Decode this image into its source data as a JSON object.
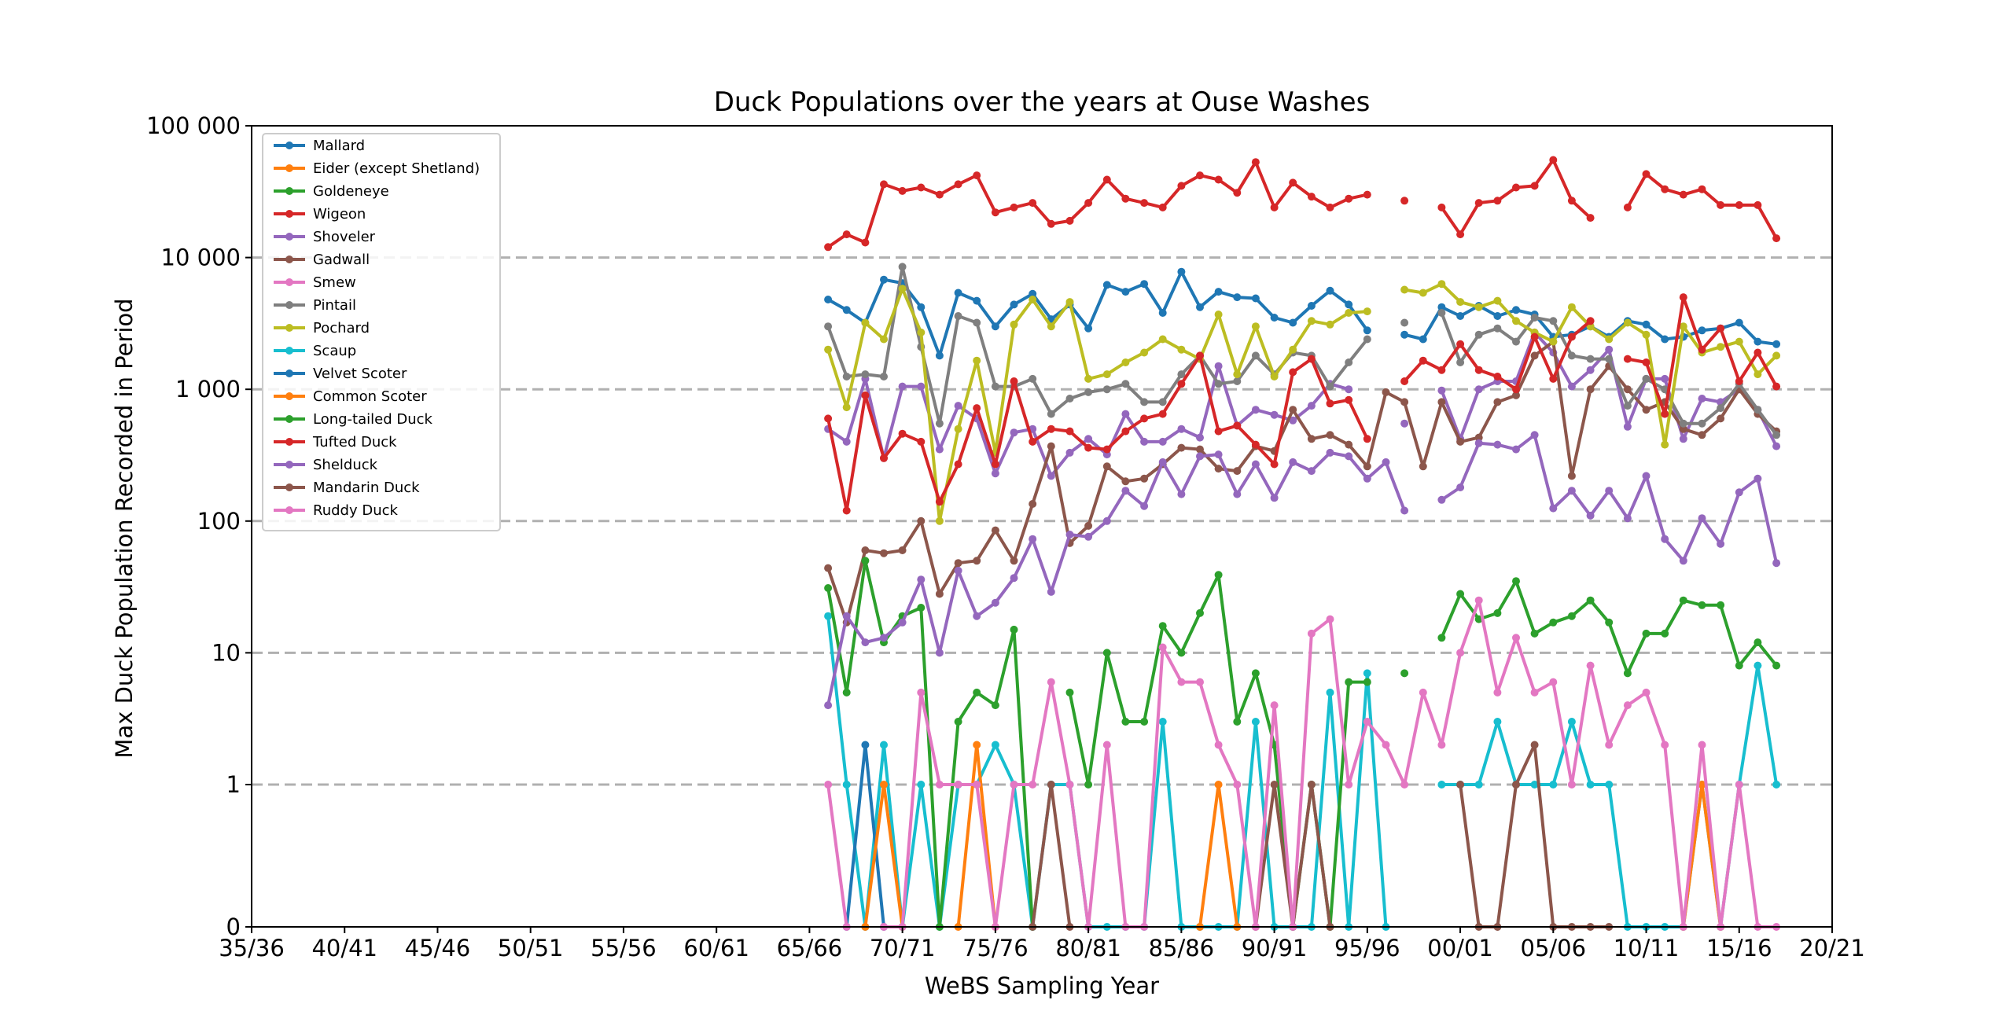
{
  "chart_data": {
    "type": "line",
    "title": "Duck Populations over the years at Ouse Washes",
    "xlabel": "WeBS Sampling Year",
    "ylabel": "Max Duck Population Recorded in Period",
    "x_tick_labels": [
      "35/36",
      "40/41",
      "45/46",
      "50/51",
      "55/56",
      "60/61",
      "65/66",
      "70/71",
      "75/76",
      "80/81",
      "85/86",
      "90/91",
      "95/96",
      "00/01",
      "05/06",
      "10/11",
      "15/16",
      "20/21"
    ],
    "x_tick_values": [
      1935,
      1940,
      1945,
      1950,
      1955,
      1960,
      1965,
      1970,
      1975,
      1980,
      1985,
      1990,
      1995,
      2000,
      2005,
      2010,
      2015,
      2020
    ],
    "xlim": [
      1935,
      2020
    ],
    "yscale": "symlog",
    "ylim": [
      0,
      100000
    ],
    "y_tick_values": [
      0,
      1,
      10,
      100,
      1000,
      10000,
      100000
    ],
    "y_tick_labels": [
      "0",
      "1",
      "10",
      "100",
      "1 000",
      "10 000",
      "100 000"
    ],
    "grid": "horizontal dashed",
    "legend_position": "upper left",
    "x": [
      1966,
      1967,
      1968,
      1969,
      1970,
      1971,
      1972,
      1973,
      1974,
      1975,
      1976,
      1977,
      1978,
      1979,
      1980,
      1981,
      1982,
      1983,
      1984,
      1985,
      1986,
      1987,
      1988,
      1989,
      1990,
      1991,
      1992,
      1993,
      1994,
      1995,
      1996,
      1997,
      1998,
      1999,
      2000,
      2001,
      2002,
      2003,
      2004,
      2005,
      2006,
      2007,
      2008,
      2009,
      2010,
      2011,
      2012,
      2013,
      2014,
      2015,
      2016,
      2017
    ],
    "series": [
      {
        "name": "Mallard",
        "color": "#1f77b4",
        "values": [
          4800,
          4000,
          3200,
          6800,
          6400,
          4200,
          1800,
          5400,
          4700,
          3000,
          4400,
          5300,
          3400,
          4400,
          2900,
          6200,
          5500,
          6300,
          3800,
          7800,
          4200,
          5500,
          5000,
          4900,
          3500,
          3200,
          4300,
          5600,
          4400,
          2800,
          null,
          2600,
          2400,
          4200,
          3600,
          4300,
          3600,
          4000,
          3700,
          2500,
          2600,
          3000,
          2500,
          3300,
          3100,
          2400,
          2500,
          2800,
          2900,
          3200,
          2300,
          2200
        ]
      },
      {
        "name": "Eider (except Shetland)",
        "color": "#ff7f0e",
        "values": [
          null,
          null,
          null,
          null,
          null,
          null,
          null,
          null,
          null,
          null,
          null,
          null,
          null,
          null,
          null,
          null,
          null,
          null,
          null,
          null,
          null,
          null,
          null,
          null,
          null,
          null,
          null,
          null,
          null,
          null,
          null,
          null,
          null,
          null,
          null,
          null,
          null,
          null,
          null,
          null,
          null,
          null,
          null,
          null,
          null,
          null,
          null,
          null,
          null,
          null,
          null,
          null
        ]
      },
      {
        "name": "Goldeneye",
        "color": "#2ca02c",
        "values": [
          null,
          null,
          null,
          null,
          null,
          null,
          null,
          null,
          null,
          null,
          null,
          null,
          null,
          null,
          null,
          null,
          null,
          null,
          null,
          null,
          null,
          null,
          null,
          null,
          null,
          null,
          null,
          null,
          null,
          null,
          null,
          null,
          null,
          null,
          null,
          null,
          null,
          null,
          null,
          null,
          null,
          null,
          null,
          null,
          null,
          null,
          null,
          null,
          null,
          null,
          null,
          null
        ]
      },
      {
        "name": "Wigeon",
        "color": "#d62728",
        "values": [
          12000,
          15000,
          13000,
          36000,
          32000,
          34000,
          30000,
          36000,
          42000,
          22000,
          24000,
          26000,
          18000,
          19000,
          26000,
          39000,
          28000,
          26000,
          24000,
          35000,
          42000,
          39000,
          31000,
          53000,
          24000,
          37000,
          29000,
          24000,
          28000,
          30000,
          null,
          27000,
          null,
          24000,
          15000,
          26000,
          27000,
          34000,
          35000,
          55000,
          27000,
          20000,
          null,
          24000,
          43000,
          33000,
          30000,
          33000,
          25000,
          25000,
          25000,
          14000
        ]
      },
      {
        "name": "Shoveler",
        "color": "#9467bd",
        "values": [
          500,
          400,
          1200,
          300,
          1050,
          1050,
          350,
          750,
          600,
          230,
          470,
          500,
          220,
          330,
          420,
          320,
          650,
          400,
          400,
          500,
          430,
          1500,
          530,
          700,
          640,
          580,
          750,
          1100,
          1000,
          null,
          null,
          550,
          null,
          980,
          420,
          1000,
          1150,
          1150,
          2700,
          1900,
          1050,
          1400,
          2000,
          520,
          1200,
          1200,
          420,
          850,
          800,
          1000,
          700,
          370
        ]
      },
      {
        "name": "Gadwall",
        "color": "#8c564b",
        "values": [
          44,
          17,
          60,
          57,
          60,
          100,
          28,
          48,
          50,
          85,
          50,
          135,
          370,
          68,
          92,
          260,
          200,
          210,
          270,
          360,
          350,
          250,
          240,
          370,
          340,
          700,
          420,
          450,
          380,
          260,
          950,
          800,
          260,
          800,
          400,
          430,
          800,
          900,
          1800,
          2300,
          220,
          1000,
          1500,
          1000,
          700,
          800,
          500,
          450,
          600,
          1000,
          650,
          480
        ]
      },
      {
        "name": "Smew",
        "color": "#e377c2",
        "values": [
          null,
          null,
          null,
          null,
          null,
          null,
          null,
          null,
          null,
          null,
          null,
          null,
          null,
          null,
          null,
          null,
          null,
          null,
          null,
          null,
          null,
          null,
          null,
          null,
          null,
          null,
          null,
          null,
          null,
          null,
          null,
          null,
          null,
          null,
          null,
          null,
          null,
          null,
          null,
          null,
          null,
          null,
          null,
          null,
          null,
          null,
          null,
          null,
          null,
          null,
          null,
          null
        ]
      },
      {
        "name": "Pintail",
        "color": "#7f7f7f",
        "values": [
          3000,
          1250,
          1300,
          1250,
          8500,
          2100,
          550,
          3600,
          3200,
          1050,
          1050,
          1200,
          650,
          850,
          950,
          1000,
          1100,
          800,
          800,
          1300,
          1800,
          1100,
          1150,
          1800,
          1300,
          1900,
          1800,
          1050,
          1600,
          2400,
          null,
          3200,
          null,
          3800,
          1600,
          2600,
          2900,
          2300,
          3500,
          3300,
          1800,
          1700,
          1700,
          750,
          1200,
          1000,
          550,
          550,
          720,
          1100,
          700,
          450
        ]
      },
      {
        "name": "Pochard",
        "color": "#bcbd22",
        "values": [
          2000,
          730,
          3200,
          2400,
          5800,
          2700,
          100,
          500,
          1650,
          330,
          3100,
          4800,
          3000,
          4600,
          1200,
          1300,
          1600,
          1900,
          2400,
          2000,
          1700,
          3700,
          1300,
          3000,
          1250,
          2000,
          3300,
          3100,
          3800,
          3900,
          null,
          5700,
          5400,
          6300,
          4600,
          4200,
          4700,
          3300,
          2700,
          2300,
          4200,
          3000,
          2400,
          3200,
          2600,
          380,
          3000,
          1900,
          2100,
          2300,
          1300,
          1800
        ]
      },
      {
        "name": "Scaup",
        "color": "#17becf",
        "values": [
          19,
          1,
          0,
          2,
          0,
          1,
          0,
          1,
          1,
          2,
          1,
          0,
          1,
          1,
          0,
          0,
          0,
          0,
          3,
          0,
          0,
          0,
          0,
          3,
          0,
          0,
          0,
          5,
          0,
          7,
          0,
          null,
          null,
          1,
          1,
          1,
          3,
          1,
          1,
          1,
          3,
          1,
          1,
          0,
          0,
          0,
          0,
          1,
          0,
          1,
          8,
          1
        ]
      },
      {
        "name": "Velvet Scoter",
        "color": "#1f77b4",
        "values": [
          null,
          0,
          2,
          0,
          null,
          null,
          null,
          null,
          null,
          null,
          null,
          null,
          null,
          null,
          null,
          null,
          null,
          null,
          null,
          null,
          null,
          null,
          null,
          null,
          null,
          null,
          null,
          null,
          null,
          null,
          null,
          null,
          null,
          null,
          null,
          null,
          null,
          null,
          null,
          null,
          null,
          null,
          null,
          null,
          null,
          null,
          null,
          null,
          null,
          null,
          null,
          null
        ]
      },
      {
        "name": "Common Scoter",
        "color": "#ff7f0e",
        "values": [
          null,
          null,
          0,
          1,
          0,
          null,
          null,
          0,
          2,
          0,
          null,
          null,
          null,
          null,
          null,
          null,
          null,
          null,
          null,
          null,
          0,
          1,
          0,
          null,
          null,
          null,
          null,
          null,
          null,
          null,
          null,
          null,
          null,
          null,
          null,
          null,
          null,
          null,
          null,
          null,
          null,
          null,
          null,
          null,
          null,
          null,
          0,
          1,
          0,
          null,
          null,
          null
        ]
      },
      {
        "name": "Long-tailed Duck",
        "color": "#2ca02c",
        "values": [
          31,
          5,
          50,
          12,
          19,
          22,
          0,
          3,
          5,
          4,
          15,
          0,
          null,
          5,
          1,
          10,
          3,
          3,
          16,
          10,
          20,
          39,
          3,
          7,
          2,
          0,
          1,
          0,
          6,
          6,
          null,
          7,
          null,
          13,
          28,
          18,
          20,
          35,
          14,
          17,
          19,
          25,
          17,
          7,
          14,
          14,
          25,
          23,
          23,
          8,
          12,
          8
        ]
      },
      {
        "name": "Tufted Duck",
        "color": "#d62728",
        "values": [
          600,
          120,
          900,
          300,
          460,
          400,
          140,
          270,
          720,
          270,
          1150,
          400,
          500,
          480,
          360,
          350,
          480,
          600,
          650,
          1100,
          1800,
          480,
          530,
          380,
          270,
          1350,
          1700,
          780,
          830,
          420,
          null,
          1150,
          1650,
          1400,
          2200,
          1400,
          1250,
          1000,
          2500,
          1200,
          2500,
          3300,
          null,
          1700,
          1600,
          650,
          5000,
          2000,
          2900,
          1150,
          1900,
          1050
        ]
      },
      {
        "name": "Shelduck",
        "color": "#9467bd",
        "values": [
          4,
          19,
          12,
          13,
          17,
          36,
          10,
          42,
          19,
          24,
          37,
          73,
          29,
          79,
          76,
          100,
          170,
          130,
          280,
          160,
          310,
          320,
          160,
          270,
          150,
          280,
          240,
          330,
          310,
          210,
          280,
          120,
          null,
          145,
          180,
          390,
          380,
          350,
          450,
          125,
          170,
          110,
          170,
          105,
          220,
          73,
          50,
          105,
          67,
          165,
          210,
          48
        ]
      },
      {
        "name": "Mandarin Duck",
        "color": "#8c564b",
        "values": [
          null,
          null,
          null,
          null,
          null,
          null,
          null,
          null,
          null,
          null,
          null,
          0,
          1,
          0,
          null,
          null,
          null,
          null,
          null,
          null,
          null,
          null,
          null,
          0,
          1,
          0,
          1,
          0,
          null,
          null,
          null,
          null,
          null,
          null,
          1,
          0,
          0,
          1,
          2,
          0,
          0,
          0,
          0,
          null,
          null,
          null,
          null,
          null,
          null,
          null,
          null,
          null
        ]
      },
      {
        "name": "Ruddy Duck",
        "color": "#e377c2",
        "values": [
          1,
          0,
          null,
          0,
          0,
          5,
          1,
          1,
          1,
          0,
          1,
          1,
          6,
          1,
          0,
          2,
          0,
          0,
          11,
          6,
          6,
          2,
          1,
          0,
          4,
          0,
          14,
          18,
          1,
          3,
          2,
          1,
          5,
          2,
          10,
          25,
          5,
          13,
          5,
          6,
          1,
          8,
          2,
          4,
          5,
          2,
          0,
          2,
          0,
          1,
          0,
          0
        ]
      }
    ]
  }
}
